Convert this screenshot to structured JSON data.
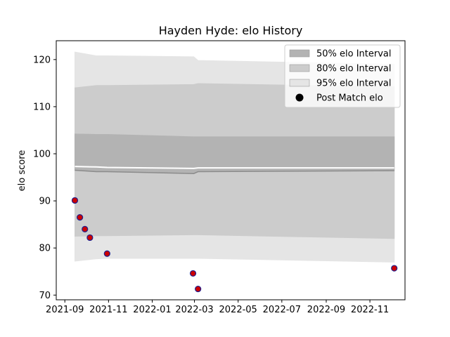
{
  "chart_data": {
    "type": "area",
    "title": "Hayden Hyde: elo History",
    "xlabel": "",
    "ylabel": "elo score",
    "x_ticks": [
      "2021-09",
      "2021-11",
      "2022-01",
      "2022-03",
      "2022-05",
      "2022-07",
      "2022-09",
      "2022-11"
    ],
    "y_ticks": [
      70,
      80,
      90,
      100,
      110,
      120
    ],
    "xlim": [
      "2021-08-20",
      "2022-12-20"
    ],
    "ylim": [
      69,
      124
    ],
    "legend_position": "top-right",
    "legend": [
      {
        "label": "50% elo Interval",
        "color": "#b3b3b3",
        "kind": "patch"
      },
      {
        "label": "80% elo Interval",
        "color": "#cccccc",
        "kind": "patch"
      },
      {
        "label": "95% elo Interval",
        "color": "#e5e5e5",
        "kind": "patch"
      },
      {
        "label": "Post Match elo",
        "color": "#000000",
        "kind": "dot"
      }
    ],
    "band_x": [
      "2021-09-15",
      "2021-10-15",
      "2021-10-30",
      "2022-02-28",
      "2022-03-06",
      "2022-12-05"
    ],
    "mean": [
      97.3,
      97.2,
      97.1,
      96.9,
      97.0,
      97.0
    ],
    "band_50": {
      "lower": [
        96.5,
        96.2,
        96.2,
        95.8,
        96.2,
        96.4
      ],
      "upper": [
        104.2,
        104.1,
        104.1,
        103.6,
        103.6,
        103.6
      ]
    },
    "band_80": {
      "lower": [
        82.5,
        82.6,
        82.6,
        82.8,
        82.8,
        82.0
      ],
      "upper": [
        114.0,
        114.5,
        114.5,
        114.7,
        114.9,
        114.2
      ]
    },
    "band_95": {
      "lower": [
        77.2,
        77.7,
        77.8,
        77.8,
        77.8,
        77.0
      ],
      "upper": [
        121.6,
        120.8,
        120.8,
        120.6,
        119.8,
        119.0
      ]
    },
    "points": [
      {
        "x": "2021-09-15",
        "y": 90.1
      },
      {
        "x": "2021-09-22",
        "y": 86.5
      },
      {
        "x": "2021-09-29",
        "y": 84.0
      },
      {
        "x": "2021-10-06",
        "y": 82.2
      },
      {
        "x": "2021-10-30",
        "y": 78.8
      },
      {
        "x": "2022-02-27",
        "y": 74.6
      },
      {
        "x": "2022-03-06",
        "y": 71.3
      },
      {
        "x": "2022-12-05",
        "y": 75.7
      }
    ],
    "colors": {
      "band_50": "#b3b3b3",
      "band_80": "#cccccc",
      "band_95": "#e5e5e5",
      "mean": "#ffffff",
      "median": "#8c8c8c",
      "point_fill": "#cc0000",
      "point_edge": "#1f1f8f"
    }
  }
}
